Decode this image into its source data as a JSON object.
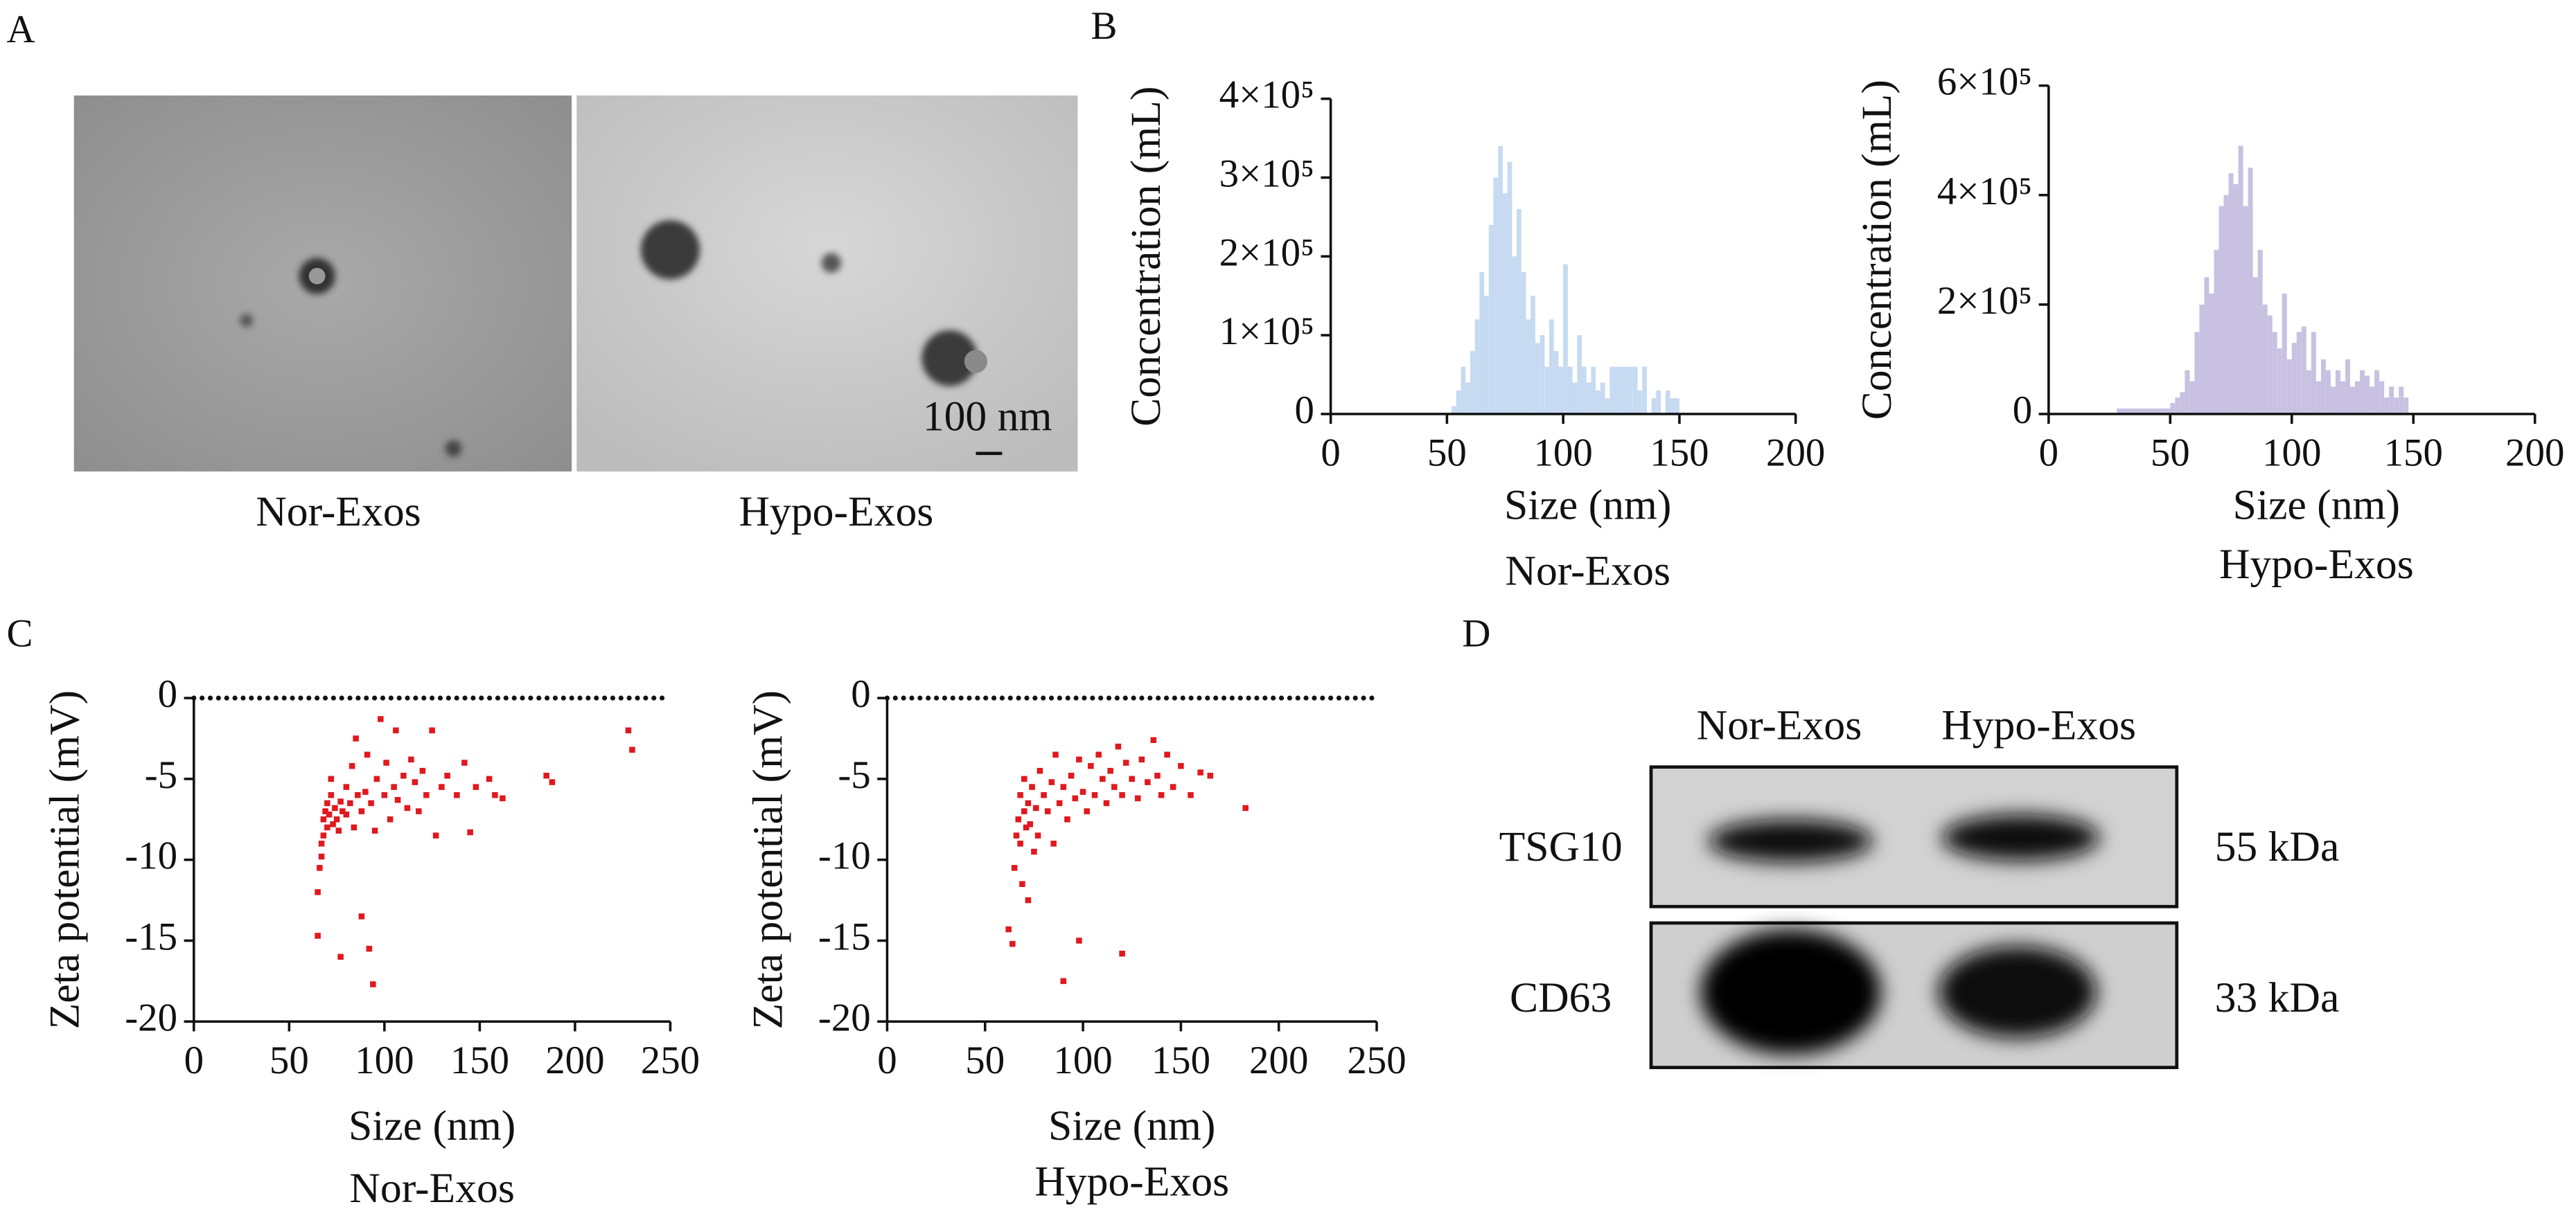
{
  "panel_labels": [
    "A",
    "B",
    "C",
    "D"
  ],
  "tem": {
    "images": [
      "Nor-Exos",
      "Hypo-Exos"
    ],
    "scale_bar": "100 nm"
  },
  "chart_data": [
    {
      "type": "histogram",
      "ylabel": "Concentration (mL)",
      "xlabel": "Size (nm)",
      "caption": "Nor-Exos",
      "color": "#c6daf1",
      "xlim": [
        0,
        200
      ],
      "xticks": [
        0,
        50,
        100,
        150,
        200
      ],
      "ylim": [
        0,
        400000
      ],
      "yticks": [
        0,
        {
          "value": 100000,
          "label": "1×10⁵"
        },
        {
          "value": 200000,
          "label": "2×10⁵"
        },
        {
          "value": 300000,
          "label": "3×10⁵"
        },
        {
          "value": 400000,
          "label": "4×10⁵"
        }
      ],
      "bins": [
        52,
        54,
        56,
        58,
        60,
        62,
        64,
        66,
        68,
        70,
        72,
        74,
        76,
        78,
        80,
        82,
        84,
        86,
        88,
        90,
        92,
        94,
        96,
        98,
        100,
        102,
        104,
        106,
        108,
        110,
        112,
        114,
        116,
        118,
        120,
        122,
        124,
        126,
        128,
        130,
        132,
        134,
        136,
        138,
        140,
        142,
        144,
        146,
        148,
        150
      ],
      "values": [
        10000,
        30000,
        60000,
        40000,
        80000,
        120000,
        180000,
        150000,
        240000,
        300000,
        340000,
        280000,
        320000,
        200000,
        260000,
        180000,
        120000,
        150000,
        90000,
        100000,
        60000,
        120000,
        80000,
        60000,
        190000,
        60000,
        40000,
        100000,
        60000,
        40000,
        60000,
        30000,
        40000,
        20000,
        60000,
        60000,
        60000,
        60000,
        60000,
        60000,
        30000,
        60000,
        0,
        20000,
        30000,
        0,
        30000,
        20000,
        20000
      ]
    },
    {
      "type": "histogram",
      "ylabel": "Concentration (mL)",
      "xlabel": "Size (nm)",
      "caption": "Hypo-Exos",
      "color": "#c9c1e1",
      "xlim": [
        0,
        200
      ],
      "xticks": [
        0,
        50,
        100,
        150,
        200
      ],
      "ylim": [
        0,
        600000
      ],
      "yticks": [
        0,
        {
          "value": 200000,
          "label": "2×10⁵"
        },
        {
          "value": 400000,
          "label": "4×10⁵"
        },
        {
          "value": 600000,
          "label": "6×10⁵"
        }
      ],
      "bins": [
        28,
        50,
        52,
        54,
        56,
        58,
        60,
        62,
        64,
        66,
        68,
        70,
        72,
        74,
        76,
        78,
        80,
        82,
        84,
        86,
        88,
        90,
        92,
        94,
        96,
        98,
        100,
        102,
        104,
        106,
        108,
        110,
        112,
        114,
        116,
        118,
        120,
        122,
        124,
        126,
        128,
        130,
        132,
        134,
        136,
        138,
        140,
        142,
        144,
        146,
        148
      ],
      "values": [
        10000,
        20000,
        30000,
        40000,
        80000,
        60000,
        150000,
        200000,
        250000,
        220000,
        300000,
        380000,
        400000,
        440000,
        420000,
        490000,
        380000,
        450000,
        250000,
        300000,
        200000,
        180000,
        150000,
        120000,
        220000,
        100000,
        130000,
        150000,
        160000,
        80000,
        150000,
        60000,
        100000,
        80000,
        50000,
        80000,
        60000,
        100000,
        50000,
        60000,
        80000,
        70000,
        50000,
        80000,
        60000,
        30000,
        50000,
        30000,
        50000,
        30000
      ]
    },
    {
      "type": "scatter",
      "ylabel": "Zeta potential (mV)",
      "xlabel": "Size (nm)",
      "caption": "Nor-Exos",
      "color": "#e0191f",
      "reference_line": 0,
      "xlim": [
        0,
        250
      ],
      "xticks": [
        0,
        50,
        100,
        150,
        200,
        250
      ],
      "ylim": [
        -20,
        0
      ],
      "yticks": [
        0,
        -5,
        -10,
        -15,
        -20
      ],
      "x": [
        65,
        65,
        66,
        67,
        67,
        68,
        68,
        69,
        70,
        70,
        71,
        72,
        72,
        73,
        74,
        75,
        76,
        77,
        77,
        78,
        80,
        80,
        82,
        83,
        84,
        85,
        86,
        88,
        88,
        90,
        91,
        92,
        93,
        94,
        95,
        96,
        98,
        100,
        101,
        103,
        105,
        106,
        107,
        110,
        112,
        114,
        116,
        118,
        120,
        122,
        125,
        127,
        130,
        133,
        138,
        142,
        145,
        148,
        155,
        158,
        162,
        185,
        188,
        228,
        230
      ],
      "values": [
        -14.7,
        -12,
        -10.5,
        -9.8,
        -9,
        -8.5,
        -7.5,
        -7,
        -8,
        -6.5,
        -7.2,
        -5,
        -6,
        -7.8,
        -6.8,
        -7.5,
        -8.2,
        -16,
        -6.4,
        -7,
        -5.5,
        -7.2,
        -6.5,
        -4.2,
        -8,
        -2.5,
        -6,
        -13.5,
        -7,
        -5.8,
        -3.5,
        -15.5,
        -6.5,
        -17.7,
        -8.2,
        -5,
        -1.3,
        -6,
        -4,
        -7.5,
        -5.5,
        -2,
        -6.3,
        -4.8,
        -6.8,
        -3.8,
        -5.2,
        -7,
        -4.5,
        -6,
        -2,
        -8.5,
        -5.5,
        -4.8,
        -6,
        -4,
        -8.3,
        -5.5,
        -5,
        -6,
        -6.2,
        -4.8,
        -5.2,
        -2,
        -3.2
      ]
    },
    {
      "type": "scatter",
      "ylabel": "Zeta potential (mV)",
      "xlabel": "Size (nm)",
      "caption": "Hypo-Exos",
      "color": "#e0191f",
      "reference_line": 0,
      "xlim": [
        0,
        250
      ],
      "xticks": [
        0,
        50,
        100,
        150,
        200,
        250
      ],
      "ylim": [
        -20,
        0
      ],
      "yticks": [
        0,
        -5,
        -10,
        -15,
        -20
      ],
      "x": [
        62,
        64,
        65,
        66,
        67,
        68,
        68,
        69,
        70,
        70,
        71,
        72,
        72,
        73,
        74,
        75,
        76,
        77,
        78,
        80,
        82,
        84,
        85,
        86,
        88,
        90,
        90,
        92,
        94,
        96,
        98,
        98,
        100,
        102,
        104,
        106,
        108,
        110,
        112,
        114,
        116,
        118,
        120,
        120,
        122,
        125,
        128,
        130,
        133,
        136,
        138,
        140,
        143,
        146,
        150,
        155,
        160,
        165,
        183
      ],
      "values": [
        -14.3,
        -15.2,
        -10.5,
        -8.5,
        -7.5,
        -9,
        -6,
        -11.5,
        -7,
        -5,
        -8,
        -12.5,
        -6.5,
        -7.8,
        -5.5,
        -9.5,
        -6.8,
        -8.5,
        -4.5,
        -6,
        -7,
        -5.2,
        -9,
        -3.5,
        -6.5,
        -17.5,
        -5.5,
        -7.5,
        -4.8,
        -6.2,
        -15,
        -3.8,
        -5.8,
        -7,
        -4.2,
        -6,
        -3.5,
        -5,
        -6.5,
        -4.5,
        -5.5,
        -3,
        -15.8,
        -6,
        -4,
        -5,
        -6.2,
        -3.8,
        -5.2,
        -2.6,
        -4.8,
        -6,
        -3.5,
        -5.5,
        -4.2,
        -6,
        -4.6,
        -4.8,
        -6.8
      ]
    }
  ],
  "western_blot": {
    "columns": [
      "Nor-Exos",
      "Hypo-Exos"
    ],
    "rows": [
      [
        "TSG10",
        "55 kDa"
      ],
      [
        "CD63",
        "33 kDa"
      ]
    ]
  }
}
